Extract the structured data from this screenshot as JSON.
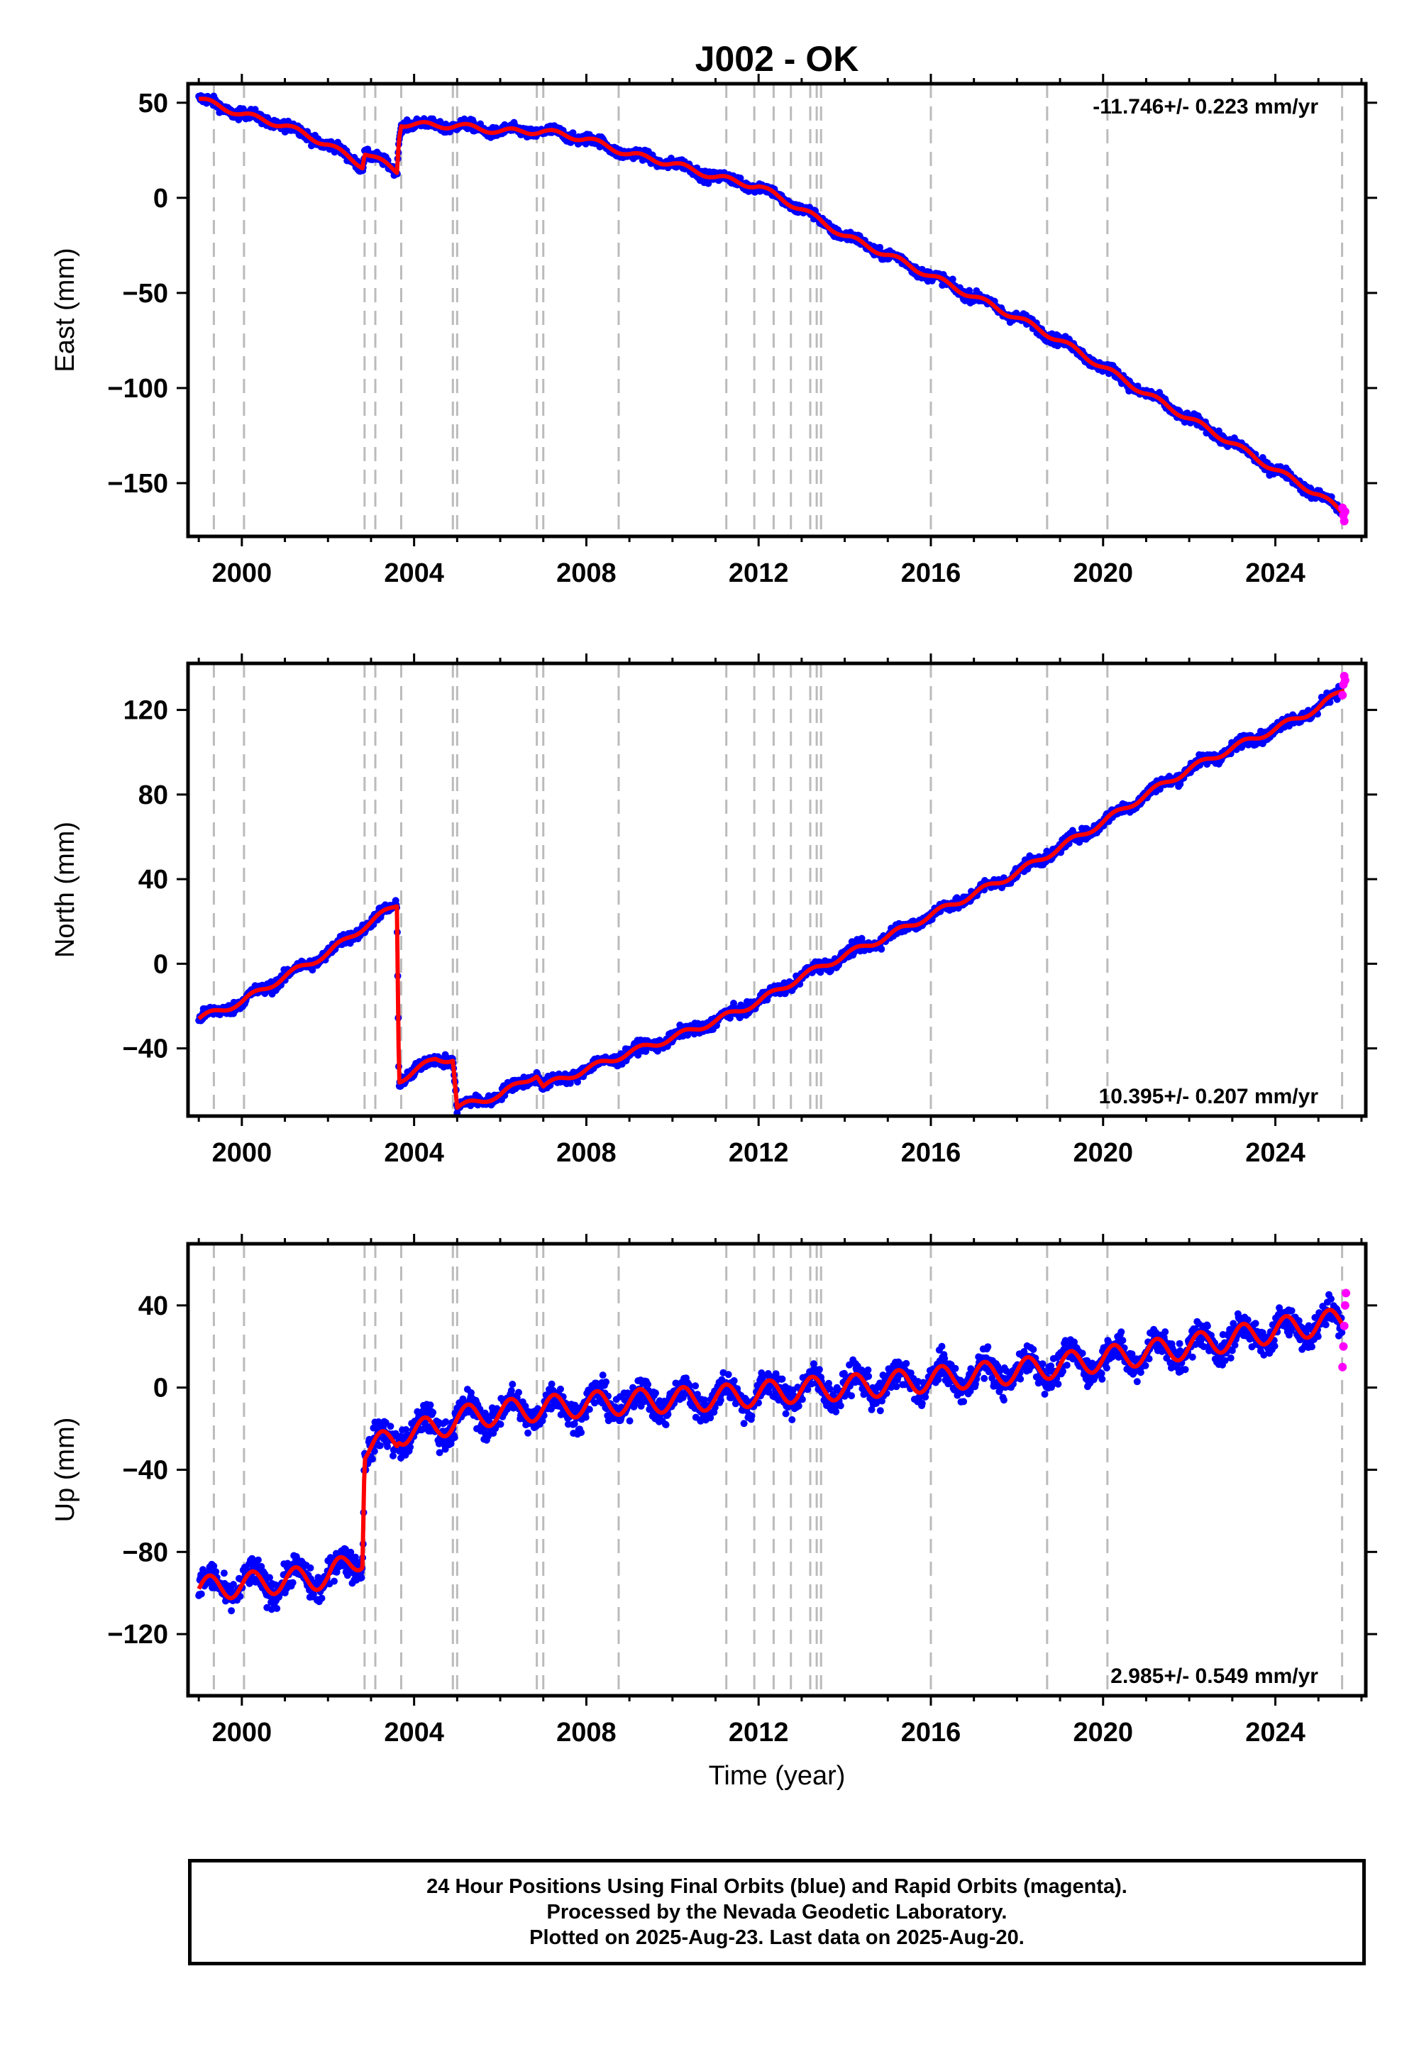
{
  "title": "J002 - OK",
  "colors": {
    "final_orbits": "#0000ff",
    "rapid_orbits": "#ff00ff",
    "model": "#ff0000",
    "event_lines": "#bbbbbb"
  },
  "x_axis": {
    "label": "Time (year)",
    "range": [
      1998.75,
      2026.1
    ],
    "ticks": [
      "2000",
      "2004",
      "2008",
      "2012",
      "2016",
      "2020",
      "2024"
    ]
  },
  "event_lines": [
    1999.35,
    2000.05,
    2002.85,
    2003.1,
    2003.7,
    2004.9,
    2005.0,
    2006.85,
    2007.0,
    2008.75,
    2011.25,
    2011.9,
    2012.35,
    2012.75,
    2013.2,
    2013.35,
    2013.45,
    2016.0,
    2018.7,
    2020.1,
    2025.55
  ],
  "chart_data": [
    {
      "type": "scatter",
      "name": "east",
      "ylabel": "East (mm)",
      "ylim": [
        -178,
        60
      ],
      "yticks": [
        "50",
        "0",
        "−50",
        "−100",
        "−150"
      ],
      "rate_label": "-11.746+/- 0.223 mm/yr",
      "seasonal_amplitude": 1.5,
      "scatter_noise": 3,
      "model": {
        "x": [
          1999.0,
          2000.0,
          2001.0,
          2002.0,
          2002.8,
          2002.85,
          2003.6,
          2003.65,
          2003.7,
          2004.5,
          2005.0,
          2006.0,
          2007.0,
          2008.0,
          2009.0,
          2010.0,
          2011.0,
          2012.0,
          2013.0,
          2014.0,
          2015.0,
          2016.0,
          2017.0,
          2018.0,
          2019.0,
          2020.0,
          2021.0,
          2022.0,
          2023.0,
          2024.0,
          2025.0,
          2025.6
        ],
        "y": [
          52,
          44,
          38,
          28,
          17,
          24,
          14,
          32,
          39,
          38,
          38,
          35,
          35,
          31,
          23,
          18,
          11,
          6,
          -6,
          -20,
          -30,
          -41,
          -52,
          -63,
          -75,
          -89,
          -103,
          -116,
          -129,
          -143,
          -156,
          -166
        ]
      },
      "rapid_points": {
        "x": [
          2025.56,
          2025.58,
          2025.6,
          2025.62
        ],
        "y": [
          -163,
          -167,
          -170,
          -165
        ]
      }
    },
    {
      "type": "scatter",
      "name": "north",
      "ylabel": "North (mm)",
      "ylim": [
        -72,
        142
      ],
      "yticks": [
        "120",
        "80",
        "40",
        "0",
        "−40"
      ],
      "rate_label": "10.395+/- 0.207 mm/yr",
      "seasonal_amplitude": 1.5,
      "scatter_noise": 3,
      "model": {
        "x": [
          1999.0,
          2000.0,
          2001.0,
          2002.0,
          2002.8,
          2003.6,
          2003.65,
          2004.5,
          2004.9,
          2005.0,
          2005.5,
          2006.0,
          2006.85,
          2007.0,
          2008.0,
          2009.0,
          2010.0,
          2011.0,
          2012.0,
          2013.0,
          2014.0,
          2015.0,
          2016.0,
          2017.0,
          2018.0,
          2019.0,
          2020.0,
          2021.0,
          2022.0,
          2023.0,
          2024.0,
          2025.0,
          2025.6
        ],
        "y": [
          -26,
          -18,
          -6,
          5,
          17,
          28,
          -55,
          -45,
          -45,
          -68,
          -65,
          -62,
          -52,
          -58,
          -50,
          -42,
          -35,
          -27,
          -18,
          -6,
          4,
          13,
          23,
          33,
          43,
          55,
          67,
          80,
          92,
          102,
          111,
          121,
          130
        ]
      },
      "rapid_points": {
        "x": [
          2025.56,
          2025.58,
          2025.6,
          2025.62
        ],
        "y": [
          127,
          132,
          136,
          134
        ]
      }
    },
    {
      "type": "scatter",
      "name": "up",
      "ylabel": "Up (mm)",
      "ylim": [
        -150,
        70
      ],
      "yticks": [
        "40",
        "0",
        "−40",
        "−80",
        "−120"
      ],
      "rate_label": "2.985+/- 0.549 mm/yr",
      "seasonal_amplitude": 6,
      "scatter_noise": 8,
      "model": {
        "x": [
          1999.0,
          2000.0,
          2001.0,
          2002.0,
          2002.8,
          2002.85,
          2003.6,
          2003.65,
          2004.5,
          2005.0,
          2006.0,
          2007.0,
          2008.0,
          2009.0,
          2010.0,
          2011.0,
          2012.0,
          2013.0,
          2014.0,
          2015.0,
          2016.0,
          2017.0,
          2018.0,
          2019.0,
          2020.0,
          2021.0,
          2022.0,
          2023.0,
          2024.0,
          2025.0,
          2025.6
        ],
        "y": [
          -98,
          -96,
          -94,
          -92,
          -82,
          -30,
          -25,
          -22,
          -20,
          -15,
          -12,
          -10,
          -8,
          -7,
          -6,
          -5,
          -3,
          -1,
          0,
          2,
          4,
          6,
          8,
          11,
          14,
          17,
          20,
          24,
          28,
          31,
          33
        ]
      },
      "rapid_points": {
        "x": [
          2025.56,
          2025.58,
          2025.6,
          2025.62,
          2025.64
        ],
        "y": [
          10,
          20,
          30,
          40,
          46
        ]
      }
    }
  ],
  "footer": {
    "line1": "24 Hour Positions Using Final Orbits (blue) and Rapid Orbits (magenta).",
    "line2": "Processed by the Nevada Geodetic Laboratory.",
    "line3": "Plotted on 2025-Aug-23. Last data on 2025-Aug-20."
  }
}
